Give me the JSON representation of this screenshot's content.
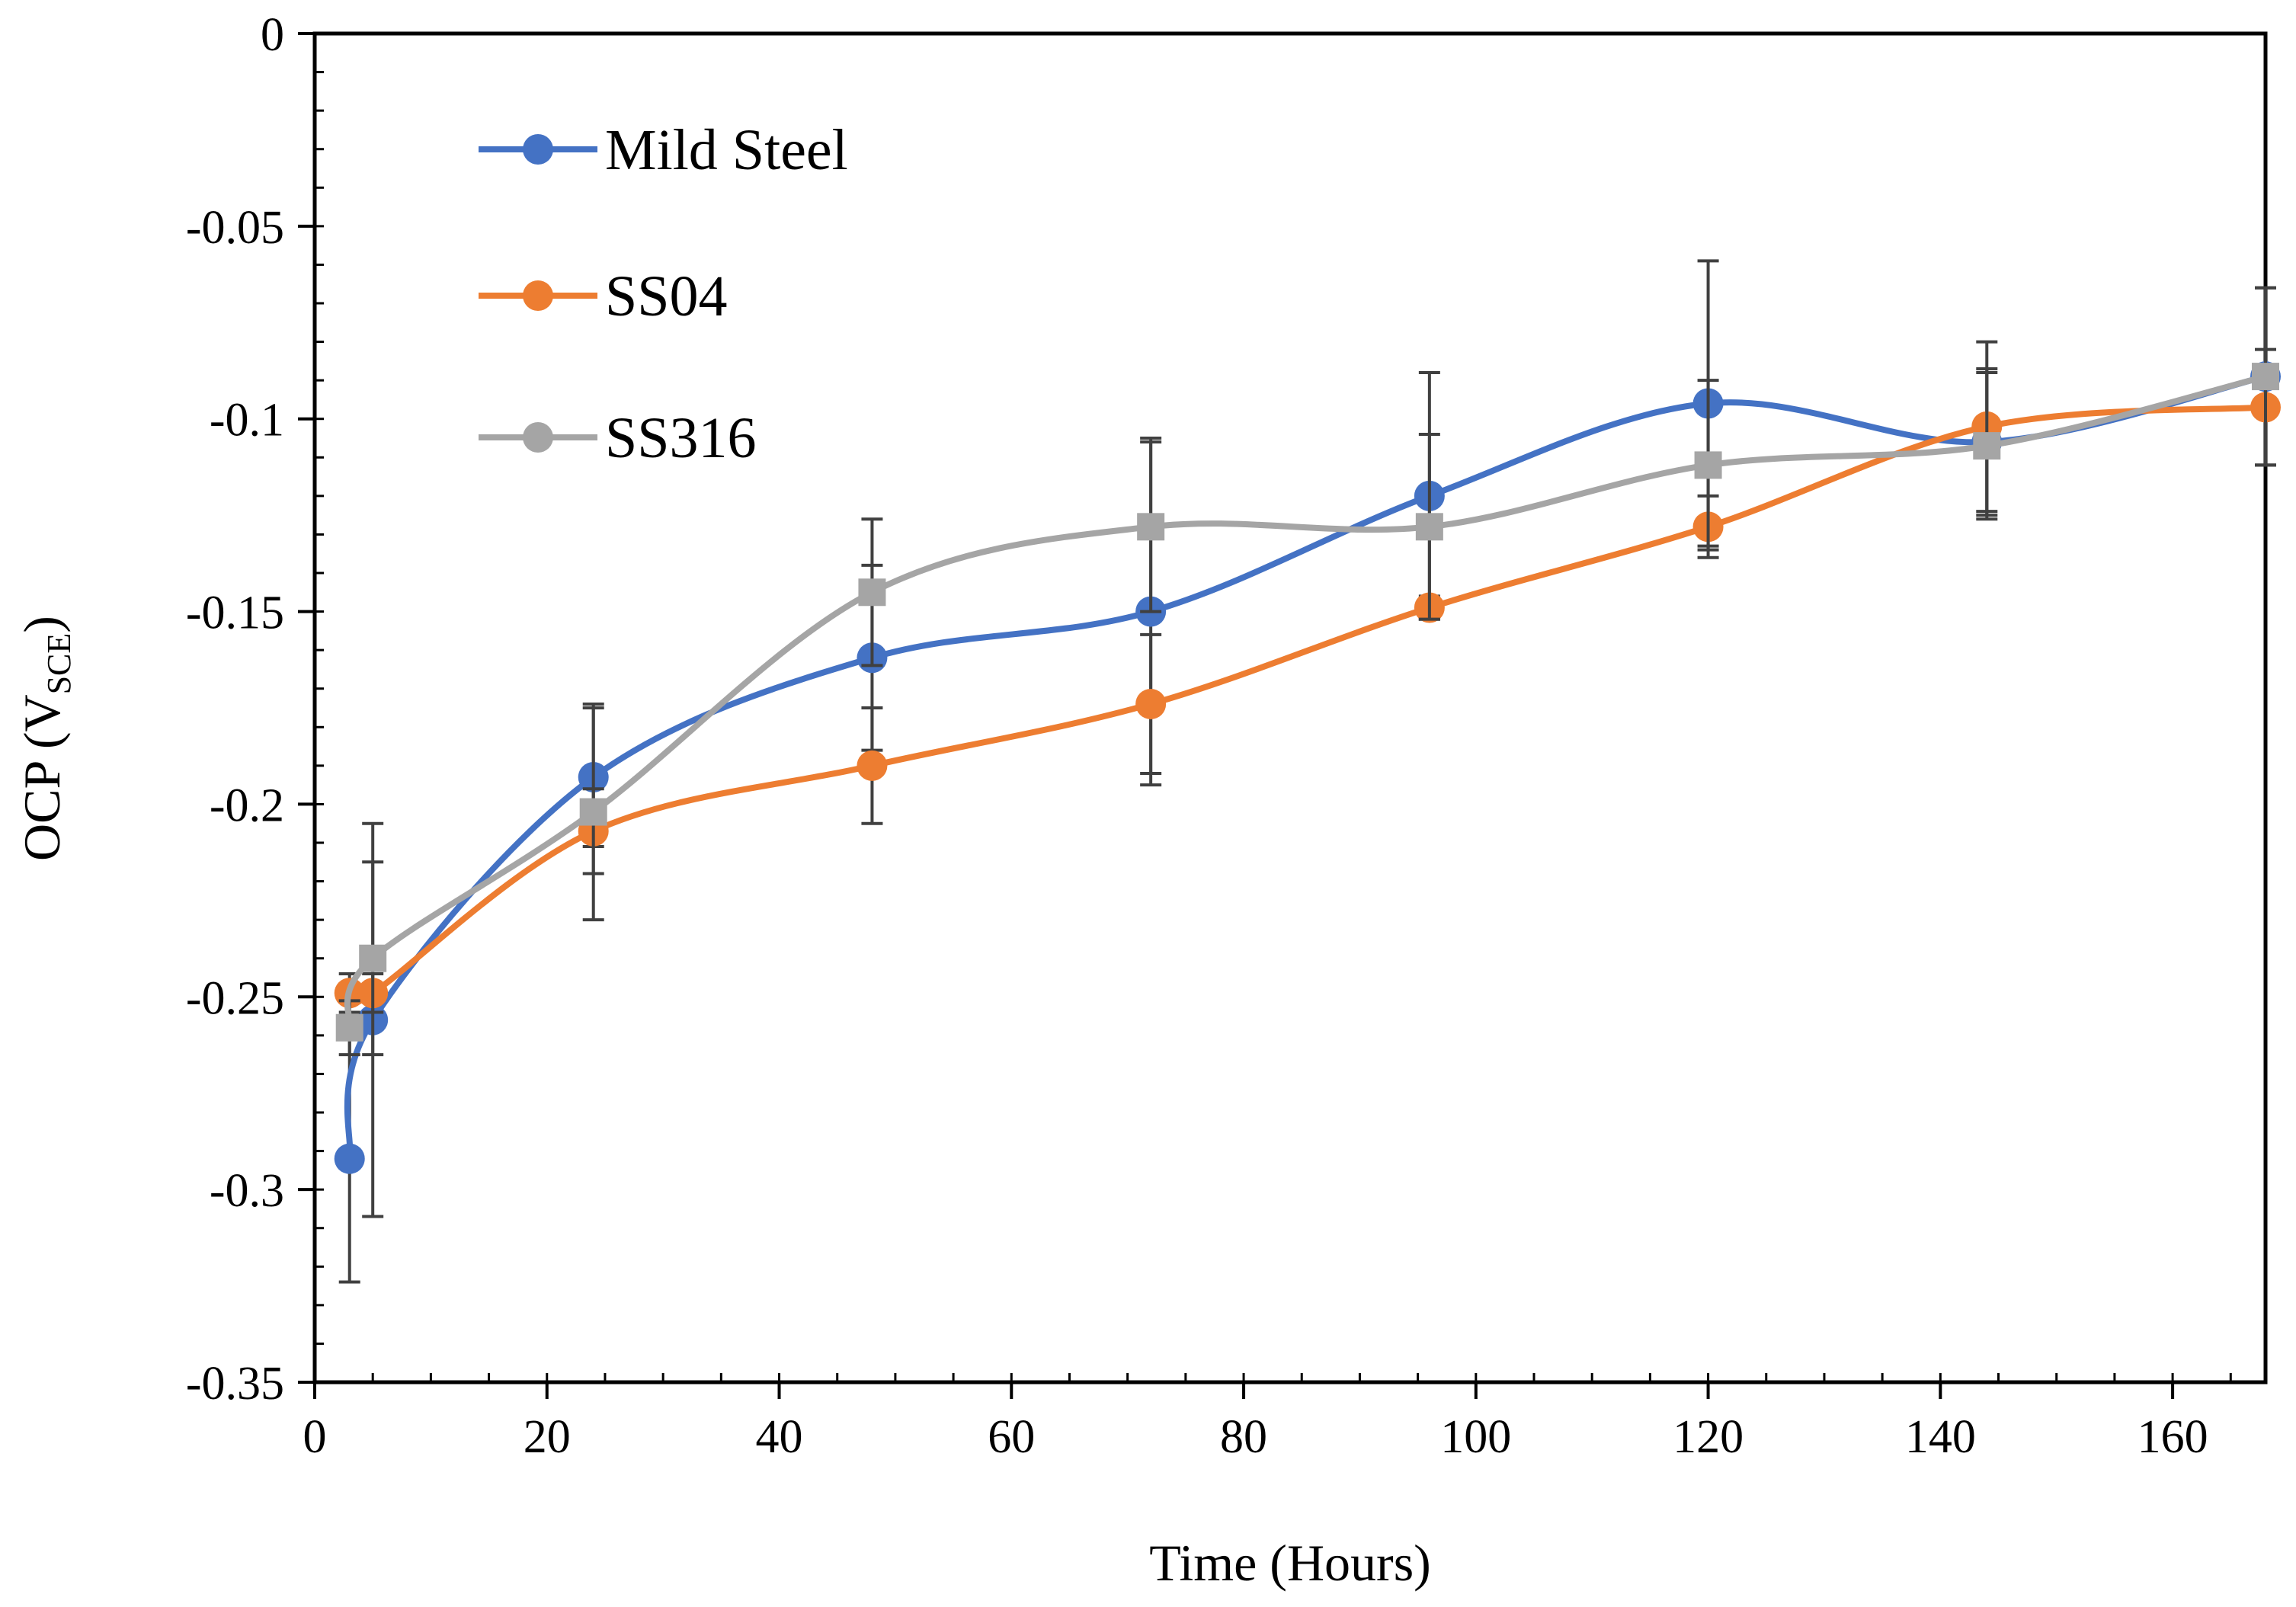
{
  "chart_data": {
    "type": "line",
    "title": "",
    "xlabel": "Time (Hours)",
    "ylabel": {
      "main": "OCP (V",
      "subscript": "SCE",
      "close": ")"
    },
    "xlim": [
      0,
      168
    ],
    "ylim": [
      -0.35,
      0
    ],
    "x_ticks": [
      0,
      20,
      40,
      60,
      80,
      100,
      120,
      140,
      160
    ],
    "x_tick_labels": [
      "0",
      "20",
      "40",
      "60",
      "80",
      "100",
      "120",
      "140",
      "160"
    ],
    "y_ticks": [
      0,
      -0.05,
      -0.1,
      -0.15,
      -0.2,
      -0.25,
      -0.3,
      -0.35
    ],
    "y_tick_labels": [
      "0",
      "-0.05",
      "-0.1",
      "-0.15",
      "-0.2",
      "-0.25",
      "-0.3",
      "-0.35"
    ],
    "grid": false,
    "legend_position": "top-left",
    "series": [
      {
        "name": "Mild Steel",
        "color": "#4472C4",
        "marker": "circle",
        "x": [
          3,
          5,
          24,
          48,
          72,
          96,
          120,
          144,
          168
        ],
        "y": [
          -0.292,
          -0.256,
          -0.193,
          -0.162,
          -0.15,
          -0.12,
          -0.096,
          -0.106,
          -0.089
        ],
        "err": [
          0.032,
          0.051,
          0.018,
          0.024,
          0.045,
          0.032,
          0.037,
          0.019,
          0.023
        ]
      },
      {
        "name": "SS04",
        "color": "#ED7D31",
        "marker": "circle",
        "x": [
          3,
          5,
          24,
          48,
          72,
          96,
          120,
          144,
          168
        ],
        "y": [
          -0.249,
          -0.249,
          -0.207,
          -0.19,
          -0.174,
          -0.149,
          -0.128,
          -0.102,
          -0.097
        ],
        "err": [
          0.005,
          0.005,
          0.011,
          0.015,
          0.018,
          0.003,
          0.008,
          0.022,
          0.015
        ]
      },
      {
        "name": "SS316",
        "color": "#A5A5A5",
        "marker": "square",
        "x": [
          3,
          5,
          24,
          48,
          72,
          96,
          120,
          144,
          168
        ],
        "y": [
          -0.258,
          -0.24,
          -0.202,
          -0.145,
          -0.128,
          -0.128,
          -0.112,
          -0.107,
          -0.089
        ],
        "err": [
          0.007,
          0.025,
          0.028,
          0.019,
          0.022,
          0.024,
          0.022,
          0.019,
          0.023
        ]
      }
    ]
  }
}
